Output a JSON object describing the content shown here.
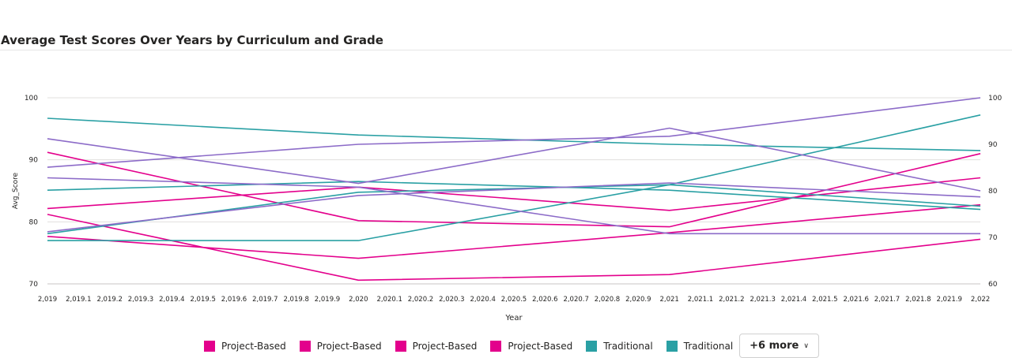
{
  "chart_data": {
    "type": "line",
    "title": "Average Test Scores Over Years by Curriculum and Grade",
    "xlabel": "Year",
    "ylabel": "Avg_Score",
    "x": [
      2019,
      2020,
      2021,
      2022
    ],
    "xlim": [
      2019,
      2022
    ],
    "x_ticks": [
      "2,019",
      "2,019.1",
      "2,019.2",
      "2,019.3",
      "2,019.4",
      "2,019.5",
      "2,019.6",
      "2,019.7",
      "2,019.8",
      "2,019.9",
      "2,020",
      "2,020.1",
      "2,020.2",
      "2,020.3",
      "2,020.4",
      "2,020.5",
      "2,020.6",
      "2,020.7",
      "2,020.8",
      "2,020.9",
      "2,021",
      "2,021.1",
      "2,021.2",
      "2,021.3",
      "2,021.4",
      "2,021.5",
      "2,021.6",
      "2,021.7",
      "2,021.8",
      "2,021.9",
      "2,022"
    ],
    "ylim": [
      70,
      100
    ],
    "y_ticks": [
      "70",
      "80",
      "90",
      "100"
    ],
    "y2lim": [
      60,
      100
    ],
    "y2_ticks": [
      "60",
      "70",
      "80",
      "90",
      "100"
    ],
    "grid": true,
    "legend": "bottom",
    "series": [
      {
        "name": "Project-Based",
        "color": "#E3008C",
        "axis": "left",
        "values": [
          91.2,
          80.2,
          79.2,
          91.0
        ]
      },
      {
        "name": "Project-Based",
        "color": "#E3008C",
        "axis": "left",
        "values": [
          81.2,
          70.6,
          71.5,
          77.2
        ]
      },
      {
        "name": "Project-Based",
        "color": "#E3008C",
        "axis": "right",
        "values": [
          70.2,
          65.5,
          71.0,
          77.0
        ]
      },
      {
        "name": "Project-Based",
        "color": "#E3008C",
        "axis": "right",
        "values": [
          76.2,
          80.8,
          75.8,
          82.8
        ]
      },
      {
        "name": "Traditional",
        "color": "#2AA0A4",
        "axis": "left",
        "values": [
          96.7,
          94.0,
          92.5,
          91.5
        ]
      },
      {
        "name": "Traditional",
        "color": "#2AA0A4",
        "axis": "left",
        "values": [
          85.1,
          86.5,
          85.1,
          82.0
        ]
      },
      {
        "name": "",
        "color": "#2AA0A4",
        "axis": "right",
        "values": [
          70.8,
          79.7,
          81.3,
          76.7
        ]
      },
      {
        "name": "",
        "color": "#2AA0A4",
        "axis": "right",
        "values": [
          69.3,
          69.3,
          81.3,
          96.3
        ]
      },
      {
        "name": "",
        "color": "#8C6BC8",
        "axis": "left",
        "values": [
          93.4,
          86.2,
          95.1,
          85.0
        ]
      },
      {
        "name": "",
        "color": "#8C6BC8",
        "axis": "left",
        "values": [
          88.8,
          92.5,
          93.8,
          100.0
        ]
      },
      {
        "name": "",
        "color": "#8C6BC8",
        "axis": "right",
        "values": [
          71.2,
          79.0,
          81.7,
          78.7
        ]
      },
      {
        "name": "",
        "color": "#8C6BC8",
        "axis": "right",
        "values": [
          82.8,
          80.8,
          70.8,
          70.8
        ]
      }
    ],
    "legend_entries": [
      {
        "label": "Project-Based",
        "color": "#E3008C"
      },
      {
        "label": "Project-Based",
        "color": "#E3008C"
      },
      {
        "label": "Project-Based",
        "color": "#E3008C"
      },
      {
        "label": "Project-Based",
        "color": "#E3008C"
      },
      {
        "label": "Traditional",
        "color": "#2AA0A4"
      },
      {
        "label": "Traditional",
        "color": "#2AA0A4"
      }
    ],
    "more_label": "+6 more"
  }
}
